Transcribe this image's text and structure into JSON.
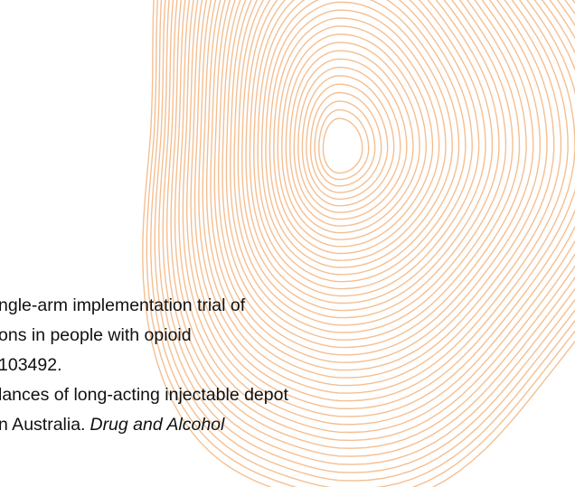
{
  "reference_lines": [
    "ngle-arm implementation trial of",
    "ons in people with opioid",
    "103492.",
    "lances of long-acting injectable depot"
  ],
  "last_line": {
    "plain": "n Australia.",
    "italic": "Drug and Alcohol"
  }
}
